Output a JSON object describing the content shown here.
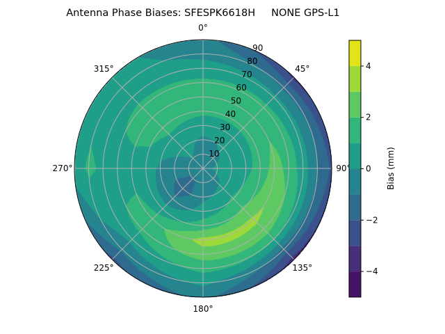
{
  "chart_data": {
    "type": "heatmap",
    "subtype": "polar filled contour",
    "title": "Antenna Phase Biases: SFESPK6618H     NONE GPS-L1",
    "angular_ticks": [
      "0°",
      "45°",
      "90°",
      "135°",
      "180°",
      "225°",
      "270°",
      "315°"
    ],
    "angular_tick_values": [
      0,
      45,
      90,
      135,
      180,
      225,
      270,
      315
    ],
    "angular_direction": "clockwise",
    "angular_zero": "top",
    "radial_ticks": [
      "10",
      "20",
      "30",
      "40",
      "50",
      "60",
      "70",
      "80",
      "90"
    ],
    "radial_tick_values": [
      10,
      20,
      30,
      40,
      50,
      60,
      70,
      80,
      90
    ],
    "radial_range": [
      0,
      90
    ],
    "grid": true,
    "colorbar": {
      "label": "Bias (mm)",
      "range": [
        -5,
        5
      ],
      "levels": [
        -5,
        -4,
        -3,
        -2,
        -1,
        0,
        1,
        2,
        3,
        4,
        5
      ],
      "ticks": [
        "−4",
        "−2",
        "0",
        "2",
        "4"
      ],
      "tick_values": [
        -4,
        -2,
        0,
        2,
        4
      ],
      "colors": [
        "#461368",
        "#472f7d",
        "#3b518b",
        "#2e6b8e",
        "#25848e",
        "#1f9e89",
        "#33b67a",
        "#5ec962",
        "#9ed93a",
        "#e2e418"
      ],
      "placement": "right"
    },
    "field": {
      "azimuths": [
        0,
        45,
        90,
        135,
        180,
        225,
        270,
        315
      ],
      "zeniths": [
        0,
        10,
        20,
        30,
        40,
        50,
        60,
        70,
        80,
        90
      ],
      "values": [
        [
          -0.5,
          -0.4,
          -0.2,
          0.5,
          1.2,
          1.5,
          1.2,
          0.5,
          -0.3,
          -0.6
        ],
        [
          -0.5,
          -0.3,
          0.2,
          0.6,
          1.2,
          1.5,
          1.3,
          0.3,
          -1.2,
          -3.3
        ],
        [
          -0.5,
          0.3,
          0.5,
          0.8,
          1.3,
          2.5,
          1.6,
          0.5,
          -1.0,
          -2.2
        ],
        [
          -0.5,
          -0.3,
          0.3,
          1.2,
          2.2,
          3.2,
          2.6,
          1.0,
          -1.5,
          -3.5
        ],
        [
          -0.5,
          -0.5,
          -0.2,
          0.5,
          1.5,
          3.4,
          2.5,
          1.3,
          0.2,
          -0.7
        ],
        [
          -0.5,
          -1.2,
          -1.6,
          -0.8,
          0.5,
          1.5,
          1.3,
          0.3,
          -0.8,
          -2.3
        ],
        [
          -0.5,
          -0.6,
          -0.5,
          -0.2,
          0.5,
          0.6,
          0.6,
          0.8,
          1.2,
          0.5
        ],
        [
          -0.5,
          0.0,
          0.4,
          0.7,
          1.5,
          1.6,
          1.3,
          0.6,
          0.4,
          0.3
        ]
      ]
    }
  }
}
